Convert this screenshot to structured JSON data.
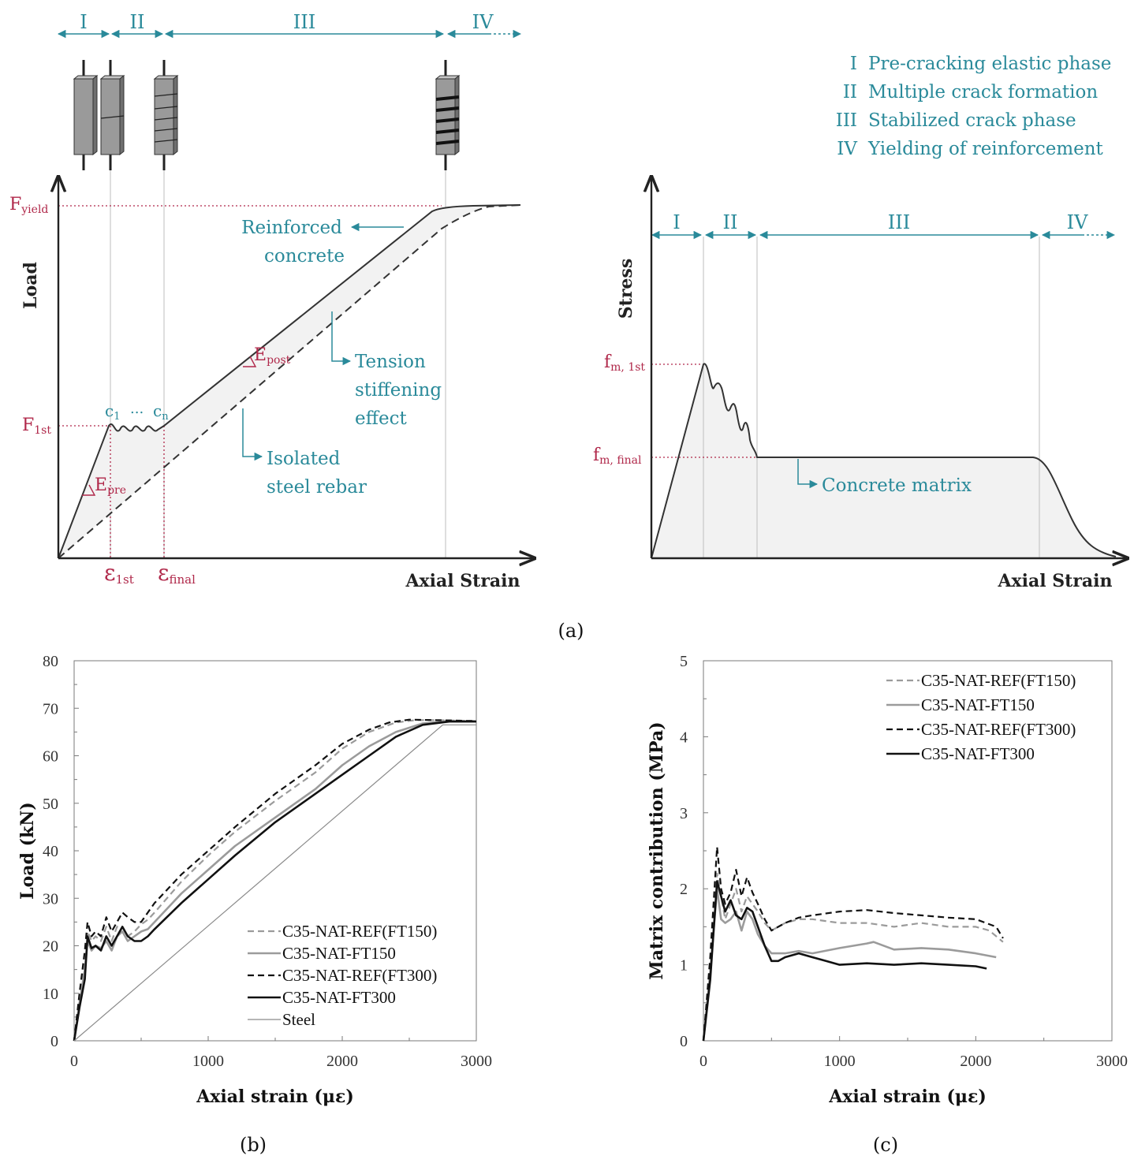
{
  "colors": {
    "teal": "#2a8a9a",
    "crimson": "#b0284a",
    "dark": "#333333",
    "fill": "#f3f3f3",
    "grey": "#9b9b9b"
  },
  "panel_a": {
    "caption": "(a)",
    "phase_marks": [
      "I",
      "II",
      "III",
      "IV"
    ],
    "phase_legend": [
      {
        "num": "I",
        "text": "Pre-cracking elastic phase"
      },
      {
        "num": "II",
        "text": "Multiple crack formation"
      },
      {
        "num": "III",
        "text": "Stabilized crack phase"
      },
      {
        "num": "IV",
        "text": "Yielding of reinforcement"
      }
    ],
    "left": {
      "ylabel": "Load",
      "xlabel": "Axial Strain",
      "f_yield": {
        "main": "F",
        "sub": "yield"
      },
      "f_first": {
        "main": "F",
        "sub": "1st"
      },
      "eps_first": {
        "main": "ε",
        "sub": "1st"
      },
      "eps_final": {
        "main": "ε",
        "sub": "final"
      },
      "e_pre": {
        "main": "E",
        "sub": "pre"
      },
      "e_post": {
        "main": "E",
        "sub": "post"
      },
      "c1": {
        "main": "c",
        "sub": "1"
      },
      "cn": {
        "main": "c",
        "sub": "n"
      },
      "dots": "...",
      "reinforced_1": "Reinforced",
      "reinforced_2": "concrete",
      "tension_1": "Tension",
      "tension_2": "stiffening",
      "tension_3": "effect",
      "isolated_1": "Isolated",
      "isolated_2": "steel rebar"
    },
    "right": {
      "ylabel": "Stress",
      "xlabel": "Axial Strain",
      "f_m_first": {
        "main": "f",
        "sub": "m, 1st"
      },
      "f_m_final": {
        "main": "f",
        "sub": "m, final"
      },
      "matrix_label": "Concrete matrix"
    }
  },
  "chart_data": [
    {
      "type": "line",
      "caption": "(b)",
      "xlabel": "Axial strain (με)",
      "ylabel": "Load (kN)",
      "xlim": [
        0,
        3000
      ],
      "ylim": [
        0,
        80
      ],
      "xticks": [
        0,
        1000,
        2000,
        3000
      ],
      "yticks": [
        0,
        10,
        20,
        30,
        40,
        50,
        60,
        70,
        80
      ],
      "series": [
        {
          "name": "C35-NAT-REF(FT150)",
          "style": "dashed-grey",
          "x": [
            0,
            40,
            80,
            100,
            130,
            160,
            200,
            240,
            280,
            320,
            360,
            400,
            450,
            500,
            550,
            600,
            800,
            1000,
            1200,
            1500,
            1800,
            2000,
            2200,
            2400,
            2550,
            2700,
            3000
          ],
          "y": [
            0,
            9,
            17,
            23,
            21,
            22,
            21,
            24,
            21,
            24,
            24,
            22,
            23,
            24.5,
            25.5,
            27,
            33.5,
            39,
            44,
            50.5,
            56.5,
            61.5,
            65,
            67,
            67.5,
            67.5,
            67.3
          ]
        },
        {
          "name": "C35-NAT-FT150",
          "style": "solid-grey",
          "x": [
            0,
            40,
            80,
            100,
            130,
            160,
            200,
            240,
            280,
            320,
            360,
            400,
            450,
            500,
            550,
            600,
            800,
            1000,
            1200,
            1500,
            1800,
            2000,
            2200,
            2400,
            2600,
            2750,
            3000
          ],
          "y": [
            0,
            8,
            15,
            21,
            19,
            20,
            19.5,
            21,
            19,
            22,
            23,
            21,
            22,
            23,
            23.5,
            25,
            31,
            36,
            41,
            47,
            53,
            58,
            62,
            65,
            66.8,
            67.2,
            67.2
          ]
        },
        {
          "name": "C35-NAT-REF(FT300)",
          "style": "dashed-black",
          "x": [
            0,
            40,
            80,
            100,
            130,
            160,
            200,
            240,
            280,
            320,
            360,
            400,
            450,
            500,
            550,
            600,
            800,
            1000,
            1200,
            1500,
            1800,
            2000,
            2200,
            2350,
            2500,
            2700,
            3000
          ],
          "y": [
            0,
            10,
            19,
            25,
            22,
            23,
            22,
            26,
            23,
            25,
            27,
            26,
            25,
            25,
            27,
            29,
            35,
            40,
            45,
            52,
            58,
            62.5,
            65.5,
            67,
            67.6,
            67.5,
            67.3
          ]
        },
        {
          "name": "C35-NAT-FT300",
          "style": "solid-black",
          "x": [
            0,
            40,
            80,
            100,
            130,
            160,
            200,
            240,
            280,
            320,
            360,
            400,
            450,
            500,
            550,
            600,
            800,
            1000,
            1200,
            1500,
            1800,
            2000,
            2200,
            2400,
            2600,
            2800,
            3000
          ],
          "y": [
            0,
            7,
            13,
            22,
            19.5,
            20,
            19,
            22,
            20,
            22,
            24,
            22,
            21,
            21,
            22,
            23.5,
            29,
            34,
            39,
            46,
            52,
            56,
            60,
            64,
            66.5,
            67.2,
            67.2
          ]
        },
        {
          "name": "Steel",
          "style": "thin-grey",
          "x": [
            0,
            2750,
            3000
          ],
          "y": [
            0,
            66.5,
            66.5
          ]
        }
      ]
    },
    {
      "type": "line",
      "caption": "(c)",
      "xlabel": "Axial strain (με)",
      "ylabel": "Matrix contribution (MPa)",
      "xlim": [
        0,
        3000
      ],
      "ylim": [
        0,
        5
      ],
      "xticks": [
        0,
        1000,
        2000,
        3000
      ],
      "yticks": [
        0,
        1,
        2,
        3,
        4,
        5
      ],
      "series": [
        {
          "name": "C35-NAT-REF(FT150)",
          "style": "dashed-grey",
          "x": [
            0,
            50,
            100,
            130,
            160,
            200,
            240,
            280,
            320,
            360,
            400,
            450,
            500,
            600,
            700,
            800,
            1000,
            1200,
            1400,
            1600,
            1800,
            2000,
            2100,
            2200
          ],
          "y": [
            0,
            1.0,
            2.2,
            1.9,
            1.6,
            1.8,
            2.0,
            1.7,
            1.9,
            1.8,
            1.7,
            1.55,
            1.45,
            1.55,
            1.6,
            1.6,
            1.55,
            1.55,
            1.5,
            1.55,
            1.5,
            1.5,
            1.45,
            1.3
          ]
        },
        {
          "name": "C35-NAT-FT150",
          "style": "solid-grey",
          "x": [
            0,
            50,
            100,
            130,
            160,
            200,
            240,
            280,
            320,
            360,
            400,
            450,
            500,
            600,
            700,
            800,
            1000,
            1200,
            1250,
            1400,
            1600,
            1800,
            2000,
            2150
          ],
          "y": [
            0,
            0.9,
            2.0,
            1.6,
            1.55,
            1.6,
            1.7,
            1.45,
            1.7,
            1.6,
            1.4,
            1.25,
            1.15,
            1.15,
            1.18,
            1.15,
            1.22,
            1.28,
            1.3,
            1.2,
            1.22,
            1.2,
            1.15,
            1.1
          ]
        },
        {
          "name": "C35-NAT-REF(FT300)",
          "style": "dashed-black",
          "x": [
            0,
            50,
            100,
            130,
            160,
            200,
            240,
            280,
            320,
            360,
            400,
            450,
            500,
            550,
            600,
            700,
            800,
            1000,
            1200,
            1400,
            1600,
            1800,
            2000,
            2150,
            2200
          ],
          "y": [
            0,
            1.1,
            2.55,
            2.0,
            1.8,
            1.95,
            2.25,
            1.9,
            2.15,
            1.95,
            1.8,
            1.6,
            1.45,
            1.5,
            1.55,
            1.62,
            1.65,
            1.7,
            1.72,
            1.68,
            1.65,
            1.62,
            1.6,
            1.5,
            1.35
          ]
        },
        {
          "name": "C35-NAT-FT300",
          "style": "solid-black",
          "x": [
            0,
            50,
            100,
            130,
            160,
            200,
            240,
            280,
            320,
            360,
            400,
            450,
            500,
            550,
            600,
            700,
            800,
            900,
            1000,
            1200,
            1400,
            1600,
            1800,
            2000,
            2080
          ],
          "y": [
            0,
            0.8,
            2.1,
            1.9,
            1.7,
            1.85,
            1.65,
            1.6,
            1.75,
            1.7,
            1.5,
            1.25,
            1.05,
            1.05,
            1.1,
            1.15,
            1.1,
            1.05,
            1.0,
            1.02,
            1.0,
            1.02,
            1.0,
            0.98,
            0.95
          ]
        }
      ]
    }
  ]
}
